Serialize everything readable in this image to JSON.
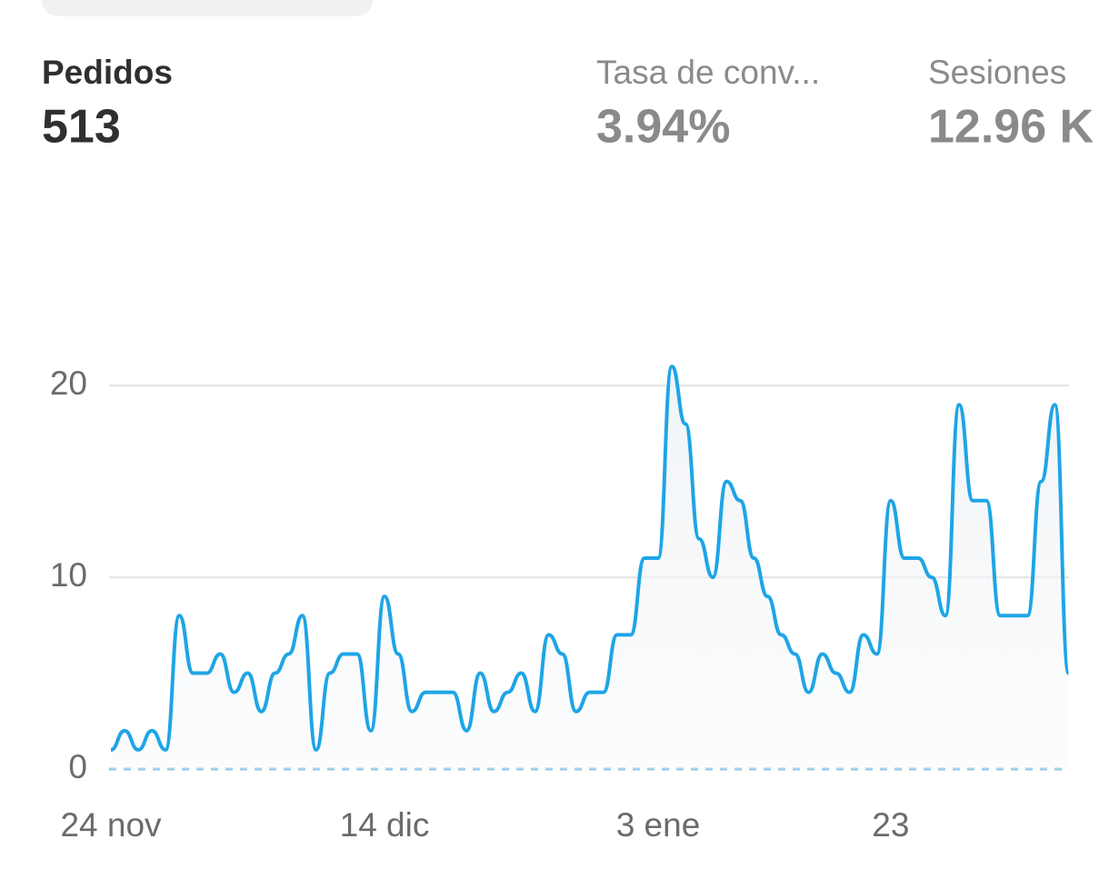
{
  "metrics": [
    {
      "label": "Pedidos",
      "value": "513"
    },
    {
      "label": "Tasa de conv...",
      "value": "3.94%"
    },
    {
      "label": "Sesiones",
      "value": "12.96 K"
    }
  ],
  "chart_data": {
    "type": "line",
    "categories": [
      "24 nov",
      null,
      null,
      null,
      null,
      null,
      null,
      null,
      null,
      null,
      null,
      null,
      null,
      null,
      null,
      null,
      null,
      null,
      null,
      null,
      "14 dic",
      null,
      null,
      null,
      null,
      null,
      null,
      null,
      null,
      null,
      null,
      null,
      null,
      null,
      null,
      null,
      null,
      null,
      null,
      null,
      "3 ene",
      null,
      null,
      null,
      null,
      null,
      null,
      null,
      null,
      null,
      null,
      null,
      null,
      null,
      null,
      null,
      null,
      "23",
      null,
      null,
      null,
      null,
      null,
      null,
      null,
      null,
      null,
      null,
      null,
      null,
      null
    ],
    "series": [
      {
        "name": "Pedidos",
        "color": "#1ea5e6",
        "values": [
          1,
          2,
          1,
          2,
          1,
          8,
          5,
          5,
          6,
          4,
          5,
          3,
          5,
          6,
          8,
          1,
          5,
          6,
          6,
          2,
          9,
          6,
          3,
          4,
          4,
          4,
          2,
          5,
          3,
          4,
          5,
          3,
          7,
          6,
          3,
          4,
          4,
          7,
          7,
          11,
          11,
          21,
          18,
          12,
          10,
          15,
          14,
          11,
          9,
          7,
          6,
          4,
          6,
          5,
          4,
          7,
          6,
          14,
          11,
          11,
          10,
          8,
          19,
          14,
          14,
          8,
          8,
          8,
          15,
          19,
          5
        ]
      }
    ],
    "ylim": [
      0,
      22
    ],
    "yticks": [
      0,
      10,
      20
    ],
    "grid": true
  }
}
